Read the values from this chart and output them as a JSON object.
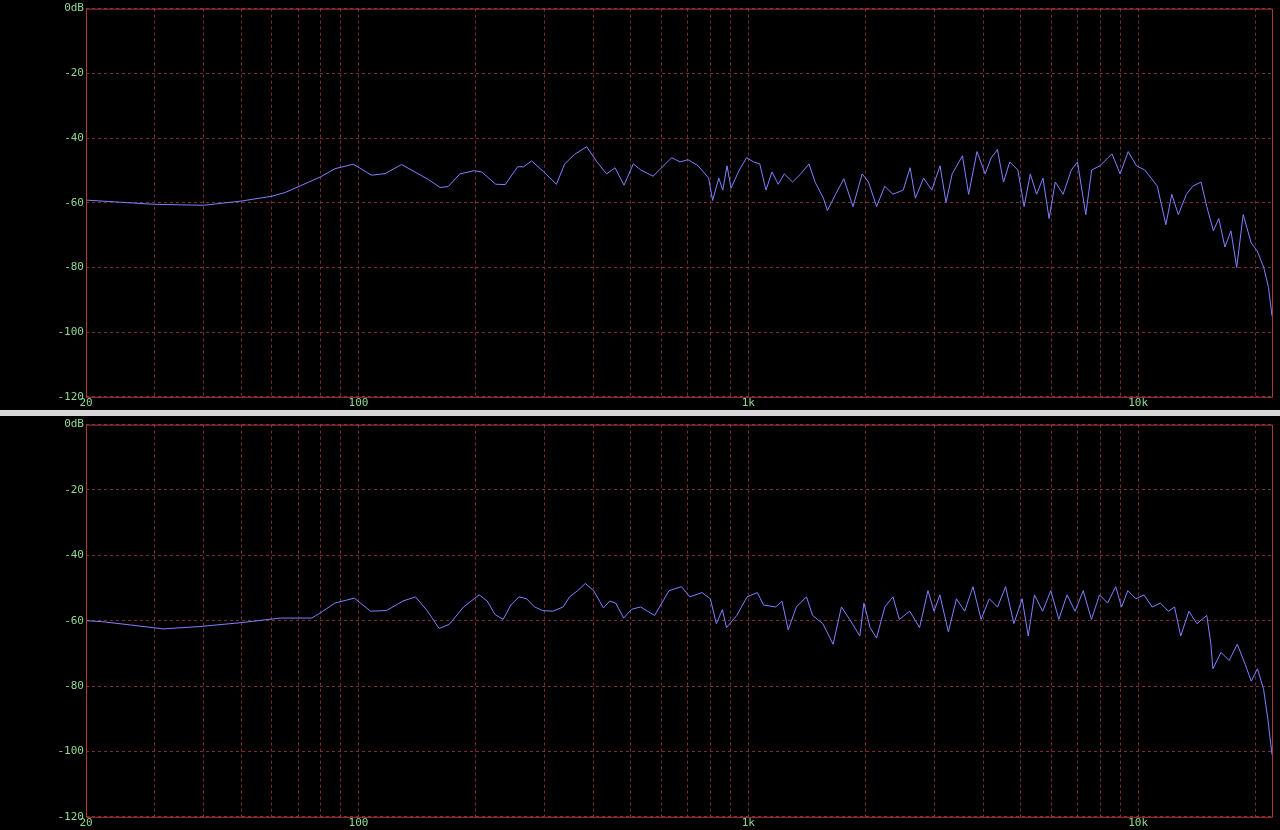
{
  "chart_data": [
    {
      "type": "line",
      "marker": "none",
      "grid": true,
      "log": "x",
      "xlim": [
        20,
        22050
      ],
      "ylim": [
        -120,
        0
      ],
      "xticks": [
        {
          "value": 20,
          "label": "20"
        },
        {
          "value": 30,
          "label": null
        },
        {
          "value": 40,
          "label": null
        },
        {
          "value": 50,
          "label": null
        },
        {
          "value": 60,
          "label": null
        },
        {
          "value": 70,
          "label": null
        },
        {
          "value": 80,
          "label": null
        },
        {
          "value": 90,
          "label": null
        },
        {
          "value": 100,
          "label": "100"
        },
        {
          "value": 200,
          "label": null
        },
        {
          "value": 300,
          "label": null
        },
        {
          "value": 400,
          "label": null
        },
        {
          "value": 500,
          "label": null
        },
        {
          "value": 600,
          "label": null
        },
        {
          "value": 700,
          "label": null
        },
        {
          "value": 800,
          "label": null
        },
        {
          "value": 900,
          "label": null
        },
        {
          "value": 1000,
          "label": "1k"
        },
        {
          "value": 2000,
          "label": null
        },
        {
          "value": 3000,
          "label": null
        },
        {
          "value": 4000,
          "label": null
        },
        {
          "value": 5000,
          "label": null
        },
        {
          "value": 6000,
          "label": null
        },
        {
          "value": 7000,
          "label": null
        },
        {
          "value": 8000,
          "label": null
        },
        {
          "value": 9000,
          "label": null
        },
        {
          "value": 10000,
          "label": "10k"
        },
        {
          "value": 20000,
          "label": null
        }
      ],
      "yticks": [
        {
          "value": 0,
          "label": "0dB"
        },
        -20,
        -40,
        -60,
        -80,
        -100,
        -120
      ],
      "series": [
        {
          "color": "#8080ff",
          "x": [
            20,
            30,
            40,
            50,
            60,
            65,
            80,
            87,
            97,
            108,
            117,
            129,
            151,
            162,
            170,
            182,
            198,
            207,
            225,
            238,
            256,
            265,
            278,
            299,
            322,
            338,
            358,
            385,
            409,
            433,
            455,
            480,
            507,
            530,
            570,
            636,
            668,
            700,
            744,
            791,
            810,
            840,
            860,
            882,
            903,
            948,
            990,
            1032,
            1070,
            1110,
            1150,
            1193,
            1237,
            1299,
            1363,
            1431,
            1483,
            1558,
            1595,
            1675,
            1758,
            1856,
            1959,
            2033,
            2134,
            2238,
            2350,
            2497,
            2600,
            2683,
            2816,
            2956,
            3103,
            3216,
            3334,
            3543,
            3675,
            3860,
            4052,
            4200,
            4356,
            4515,
            4685,
            4915,
            5100,
            5290,
            5490,
            5700,
            5910,
            6130,
            6420,
            6740,
            6990,
            7340,
            7600,
            7980,
            8370,
            8570,
            8990,
            9430,
            9900,
            10400,
            10800,
            11200,
            11780,
            12200,
            12680,
            13300,
            13800,
            14500,
            15000,
            15600,
            16100,
            16700,
            17300,
            17900,
            18600,
            19500,
            20200,
            21000,
            21600,
            22050
          ],
          "values": [
            -59.2,
            -60.5,
            -60.8,
            -59.5,
            -58,
            -56.8,
            -52,
            -49.5,
            -48.1,
            -51.5,
            -51,
            -48.2,
            -52.8,
            -55.3,
            -55,
            -51.1,
            -50.1,
            -50.5,
            -54.3,
            -54.4,
            -48.9,
            -48.9,
            -47.1,
            -50.5,
            -54.3,
            -48,
            -45.1,
            -42.7,
            -47.4,
            -51.1,
            -49.2,
            -54.6,
            -48,
            -49.9,
            -51.8,
            -46.1,
            -47.4,
            -46.7,
            -48.6,
            -52.4,
            -59.3,
            -52.4,
            -56.1,
            -48.6,
            -55.5,
            -49.9,
            -46.1,
            -47.4,
            -48,
            -56.1,
            -50.5,
            -54.3,
            -51.1,
            -53.6,
            -51.1,
            -48,
            -53.6,
            -58.6,
            -62.4,
            -57.4,
            -52.6,
            -61.2,
            -51.1,
            -53.6,
            -61.2,
            -54.9,
            -57.4,
            -56.1,
            -49.2,
            -58.6,
            -52.4,
            -56.1,
            -48.6,
            -59.9,
            -51.1,
            -45.5,
            -57.4,
            -44.2,
            -51.1,
            -46.1,
            -43.6,
            -53.6,
            -47.4,
            -49.9,
            -61.2,
            -51.1,
            -57.4,
            -52.4,
            -64.9,
            -53.6,
            -57.4,
            -49.9,
            -47.4,
            -63.7,
            -49.9,
            -48.6,
            -46.1,
            -44.9,
            -51.1,
            -44.2,
            -48.6,
            -49.9,
            -52.4,
            -54.9,
            -66.8,
            -57.4,
            -63.7,
            -57.4,
            -54.9,
            -53.6,
            -61.2,
            -68.7,
            -64.9,
            -73.7,
            -68.7,
            -80,
            -63.7,
            -72.4,
            -74.9,
            -80,
            -86.2,
            -95
          ]
        }
      ]
    },
    {
      "type": "line",
      "marker": "none",
      "grid": true,
      "log": "x",
      "xlim": [
        20,
        22050
      ],
      "ylim": [
        -120,
        0
      ],
      "xticks": [
        {
          "value": 20,
          "label": "20"
        },
        {
          "value": 30,
          "label": null
        },
        {
          "value": 40,
          "label": null
        },
        {
          "value": 50,
          "label": null
        },
        {
          "value": 60,
          "label": null
        },
        {
          "value": 70,
          "label": null
        },
        {
          "value": 80,
          "label": null
        },
        {
          "value": 90,
          "label": null
        },
        {
          "value": 100,
          "label": "100"
        },
        {
          "value": 200,
          "label": null
        },
        {
          "value": 300,
          "label": null
        },
        {
          "value": 400,
          "label": null
        },
        {
          "value": 500,
          "label": null
        },
        {
          "value": 600,
          "label": null
        },
        {
          "value": 700,
          "label": null
        },
        {
          "value": 800,
          "label": null
        },
        {
          "value": 900,
          "label": null
        },
        {
          "value": 1000,
          "label": "1k"
        },
        {
          "value": 2000,
          "label": null
        },
        {
          "value": 3000,
          "label": null
        },
        {
          "value": 4000,
          "label": null
        },
        {
          "value": 5000,
          "label": null
        },
        {
          "value": 6000,
          "label": null
        },
        {
          "value": 7000,
          "label": null
        },
        {
          "value": 8000,
          "label": null
        },
        {
          "value": 9000,
          "label": null
        },
        {
          "value": 10000,
          "label": "10k"
        },
        {
          "value": 20000,
          "label": null
        }
      ],
      "yticks": [
        {
          "value": 0,
          "label": "0dB"
        },
        -20,
        -40,
        -60,
        -80,
        -100,
        -120
      ],
      "series": [
        {
          "color": "#8080ff",
          "x": [
            20,
            22,
            26,
            31.5,
            39,
            50,
            63,
            70,
            76,
            81,
            87,
            97.6,
            107.4,
            118,
            130,
            140,
            150,
            161,
            171,
            186,
            204,
            214,
            224,
            235,
            246,
            258,
            270,
            283,
            297,
            315,
            335,
            348,
            365,
            382,
            401,
            425,
            441,
            457,
            479,
            502,
            529,
            575,
            626,
            674,
            708,
            761,
            799,
            828,
            858,
            879,
            934,
            993,
            1055,
            1094,
            1176,
            1220,
            1266,
            1328,
            1410,
            1462,
            1553,
            1650,
            1733,
            1820,
            1932,
            1980,
            2053,
            2133,
            2240,
            2350,
            2440,
            2595,
            2750,
            2890,
            2995,
            3100,
            3260,
            3420,
            3590,
            3770,
            3956,
            4150,
            4360,
            4570,
            4800,
            5040,
            5226,
            5420,
            5690,
            5970,
            6260,
            6570,
            6890,
            7230,
            7590,
            7960,
            8350,
            8760,
            9070,
            9410,
            9870,
            10350,
            10860,
            11400,
            11960,
            12400,
            12860,
            13500,
            14150,
            15000,
            15370,
            15550,
            16320,
            17120,
            17960,
            18840,
            19510,
            20240,
            20980,
            21500,
            22050
          ],
          "values": [
            -60,
            -60.3,
            -61.3,
            -62.5,
            -61.8,
            -60.6,
            -59.2,
            -59.2,
            -59.2,
            -57.1,
            -54.6,
            -53.1,
            -57.1,
            -56.9,
            -54,
            -52.7,
            -56.9,
            -62.4,
            -61.1,
            -55.8,
            -52.1,
            -54,
            -58.1,
            -59.6,
            -55.2,
            -52.7,
            -53.3,
            -55.8,
            -56.9,
            -57.1,
            -55.8,
            -52.7,
            -50.8,
            -48.6,
            -50.8,
            -56.1,
            -54,
            -54.6,
            -59.2,
            -56.5,
            -55.8,
            -58.4,
            -50.8,
            -49.6,
            -52.7,
            -51.4,
            -53.3,
            -60.9,
            -56.6,
            -62.1,
            -58.4,
            -52.7,
            -51.4,
            -55.2,
            -55.8,
            -54,
            -62.8,
            -55.8,
            -52.7,
            -58.4,
            -60.9,
            -67.2,
            -55.8,
            -59.6,
            -64.7,
            -54.6,
            -62.1,
            -65.3,
            -55.8,
            -52.7,
            -59.6,
            -57.1,
            -62.1,
            -50.8,
            -57.1,
            -52.1,
            -63.4,
            -53.3,
            -57.1,
            -49.6,
            -59.6,
            -53.3,
            -55.8,
            -49.6,
            -60.9,
            -53.3,
            -64.7,
            -52.1,
            -57.1,
            -50.8,
            -59.6,
            -52.1,
            -57.1,
            -50.8,
            -59.6,
            -52.1,
            -54.6,
            -49.6,
            -55.8,
            -50.8,
            -53.3,
            -52.1,
            -55.8,
            -54.6,
            -57.1,
            -55.8,
            -64.7,
            -57.1,
            -60.9,
            -58.4,
            -67.2,
            -74.7,
            -69.7,
            -72.2,
            -67.2,
            -73.5,
            -78.5,
            -74.7,
            -81,
            -89.8,
            -101
          ]
        }
      ]
    }
  ]
}
